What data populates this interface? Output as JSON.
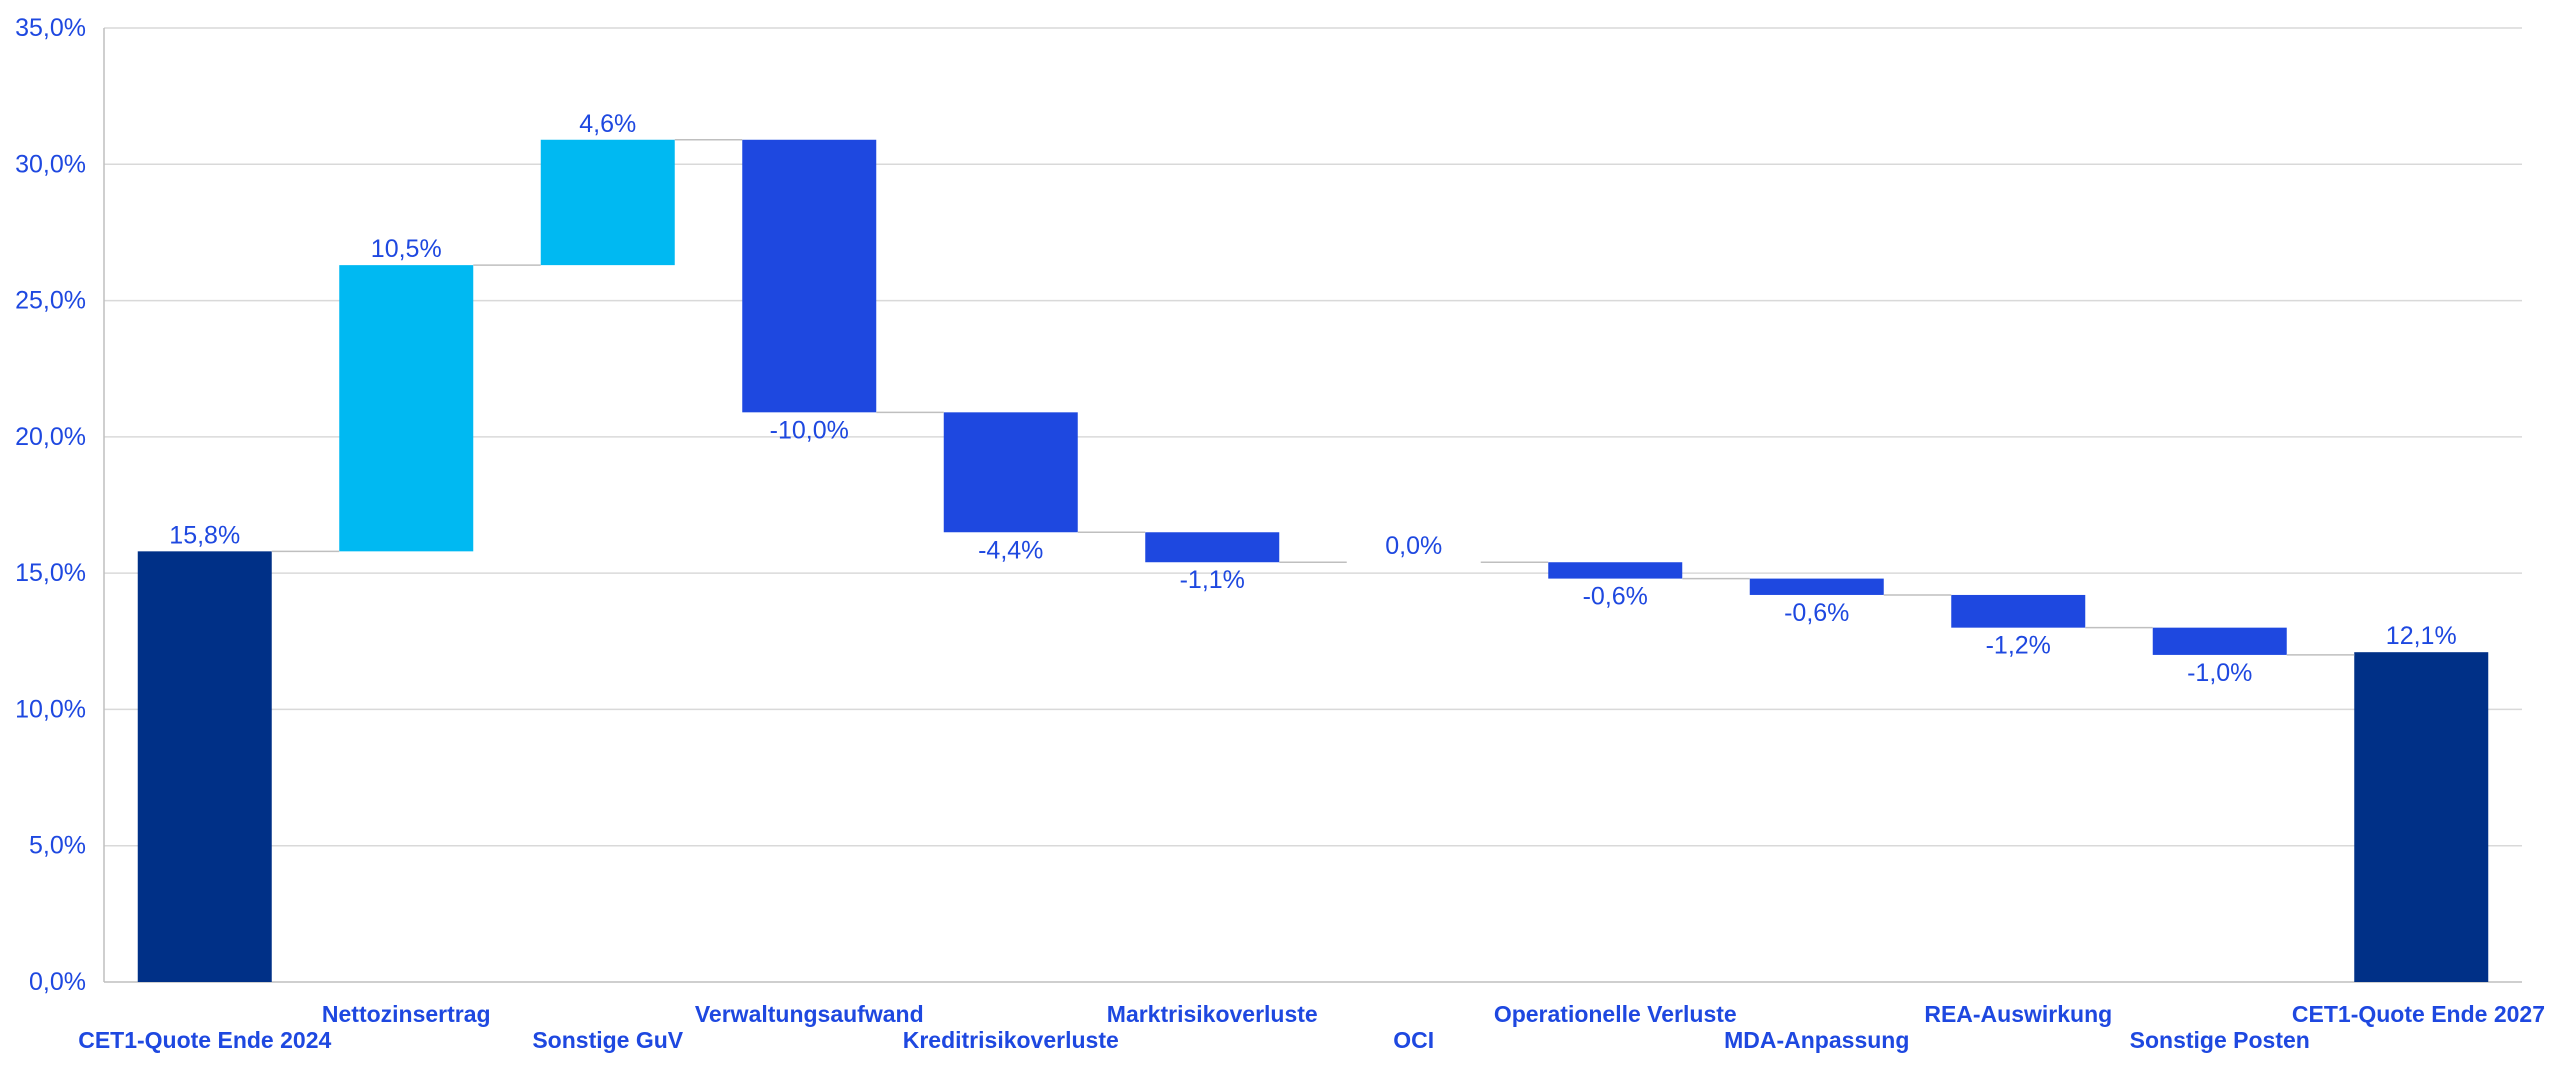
{
  "chart_data": {
    "type": "waterfall",
    "yticks": [
      "0,0%",
      "5,0%",
      "10,0%",
      "15,0%",
      "20,0%",
      "25,0%",
      "30,0%",
      "35,0%"
    ],
    "ylim": [
      0,
      35
    ],
    "grid": true,
    "categories": [
      "CET1-Quote Ende 2024",
      "Nettozinsertrag",
      "Sonstige GuV",
      "Verwaltungsaufwand",
      "Kreditrisikoverluste",
      "Marktrisikoverluste",
      "OCI",
      "Operationelle Verluste",
      "MDA-Anpassung",
      "REA-Auswirkung",
      "Sonstige Posten",
      "CET1-Quote Ende 2027"
    ],
    "values": [
      15.8,
      10.5,
      4.6,
      -10.0,
      -4.4,
      -1.1,
      0.0,
      -0.6,
      -0.6,
      -1.2,
      -1.0,
      12.1
    ],
    "kinds": [
      "total",
      "delta",
      "delta",
      "delta",
      "delta",
      "delta",
      "delta",
      "delta",
      "delta",
      "delta",
      "delta",
      "total"
    ],
    "labels": [
      "15,8%",
      "10,5%",
      "4,6%",
      "-10,0%",
      "-4,4%",
      "-1,1%",
      "0,0%",
      "-0,6%",
      "-0,6%",
      "-1,2%",
      "-1,0%",
      "12,1%"
    ],
    "colors": {
      "total": "#003087",
      "increase": "#00b9f2",
      "decrease": "#1e48e0",
      "text": "#1e48e0",
      "grid": "#d9d9d9",
      "axis": "#bfbfbf",
      "connector": "#bfbfbf"
    }
  }
}
